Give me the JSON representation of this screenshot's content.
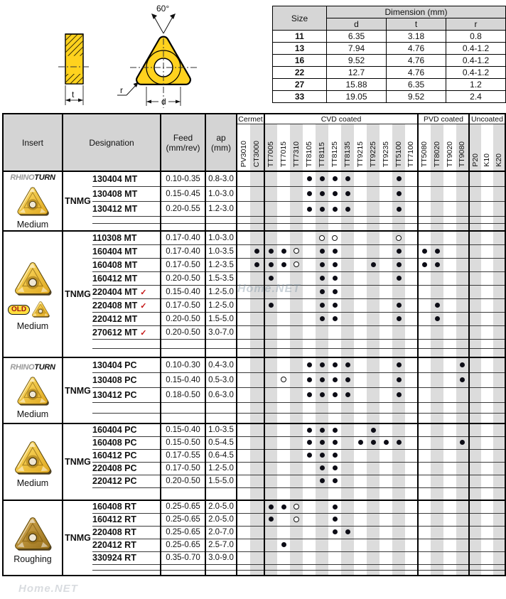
{
  "diagram": {
    "angle": "60°",
    "t": "t",
    "d": "d",
    "r": "r"
  },
  "size_table": {
    "size_header": "Size",
    "dimension_header": "Dimension (mm)",
    "columns": [
      "d",
      "t",
      "r"
    ],
    "rows": [
      [
        "11",
        "6.35",
        "3.18",
        "0.8"
      ],
      [
        "13",
        "7.94",
        "4.76",
        "0.4-1.2"
      ],
      [
        "16",
        "9.52",
        "4.76",
        "0.4-1.2"
      ],
      [
        "22",
        "12.7",
        "4.76",
        "0.4-1.2"
      ],
      [
        "27",
        "15.88",
        "6.35",
        "1.2"
      ],
      [
        "33",
        "19.05",
        "9.52",
        "2.4"
      ]
    ]
  },
  "main_table": {
    "headers": {
      "insert": "Insert",
      "designation": "Designation",
      "feed_line1": "Feed",
      "feed_line2": "(mm/rev)",
      "ap_line1": "ap",
      "ap_line2": "(mm)"
    },
    "groups": [
      {
        "label": "Cermet",
        "span": 2
      },
      {
        "label": "CVD coated",
        "span": 12
      },
      {
        "label": "PVD coated",
        "span": 4
      },
      {
        "label": "Uncoated",
        "span": 3
      }
    ],
    "grades": [
      "PV3010",
      "CT3000",
      "TT7005",
      "TT7015",
      "TT7310",
      "TT8105",
      "TT8115",
      "TT8125",
      "TT8135",
      "TT9215",
      "TT9225",
      "TT9235",
      "TT5100",
      "TT7100",
      "TT5080",
      "TT8020",
      "TT9020",
      "TT9080",
      "P20",
      "K10",
      "K20"
    ],
    "gray_columns": [
      "CT3000",
      "TT7005",
      "TT7310",
      "TT8115",
      "TT8135",
      "TT9225",
      "TT5100",
      "TT8020",
      "TT9080",
      "P20",
      "K20"
    ],
    "blocks": [
      {
        "brand": [
          "RHINO",
          "TURN"
        ],
        "badge": null,
        "label": "Medium",
        "style": "gold",
        "prefix": "TNMG",
        "empty_rows": 2,
        "rows": [
          {
            "designation": "130404 MT",
            "check": false,
            "feed": "0.10-0.35",
            "ap": "0.8-3.0",
            "filled": [
              "TT8105",
              "TT8115",
              "TT8125",
              "TT8135",
              "TT5100"
            ],
            "hollow": []
          },
          {
            "designation": "130408 MT",
            "check": false,
            "feed": "0.15-0.45",
            "ap": "1.0-3.0",
            "filled": [
              "TT8105",
              "TT8115",
              "TT8125",
              "TT8135",
              "TT5100"
            ],
            "hollow": []
          },
          {
            "designation": "130412 MT",
            "check": false,
            "feed": "0.20-0.55",
            "ap": "1.2-3.0",
            "filled": [
              "TT8105",
              "TT8115",
              "TT8125",
              "TT8135",
              "TT5100"
            ],
            "hollow": []
          }
        ]
      },
      {
        "brand": null,
        "badge": "OLD",
        "label": "Medium",
        "style": "gold",
        "prefix": "TNMG",
        "empty_rows": 2,
        "rows": [
          {
            "designation": "110308 MT",
            "check": false,
            "feed": "0.17-0.40",
            "ap": "1.0-3.0",
            "filled": [],
            "hollow": [
              "TT8115",
              "TT8125",
              "TT5100"
            ]
          },
          {
            "designation": "160404 MT",
            "check": false,
            "feed": "0.17-0.40",
            "ap": "1.0-3.5",
            "filled": [
              "CT3000",
              "TT7005",
              "TT7015",
              "TT8115",
              "TT8125",
              "TT5100",
              "TT5080",
              "TT8020"
            ],
            "hollow": [
              "TT7310"
            ]
          },
          {
            "designation": "160408 MT",
            "check": false,
            "feed": "0.17-0.50",
            "ap": "1.2-3.5",
            "filled": [
              "CT3000",
              "TT7005",
              "TT7015",
              "TT8115",
              "TT8125",
              "TT9225",
              "TT5100",
              "TT5080",
              "TT8020"
            ],
            "hollow": [
              "TT7310"
            ]
          },
          {
            "designation": "160412 MT",
            "check": false,
            "feed": "0.20-0.50",
            "ap": "1.5-3.5",
            "filled": [
              "TT7005",
              "TT8115",
              "TT8125",
              "TT5100"
            ],
            "hollow": []
          },
          {
            "designation": "220404 MT",
            "check": true,
            "feed": "0.15-0.40",
            "ap": "1.2-5.0",
            "filled": [
              "TT8115",
              "TT8125"
            ],
            "hollow": []
          },
          {
            "designation": "220408 MT",
            "check": true,
            "feed": "0.17-0.50",
            "ap": "1.2-5.0",
            "filled": [
              "TT7005",
              "TT8115",
              "TT8125",
              "TT5100",
              "TT8020"
            ],
            "hollow": []
          },
          {
            "designation": "220412 MT",
            "check": false,
            "feed": "0.20-0.50",
            "ap": "1.5-5.0",
            "filled": [
              "TT8115",
              "TT8125",
              "TT5100",
              "TT8020"
            ],
            "hollow": []
          },
          {
            "designation": "270612 MT",
            "check": true,
            "feed": "0.20-0.50",
            "ap": "3.0-7.0",
            "filled": [],
            "hollow": []
          }
        ]
      },
      {
        "brand": [
          "RHINO",
          "TURN"
        ],
        "badge": null,
        "label": "Medium",
        "style": "gold",
        "prefix": "TNMG",
        "empty_rows": 2,
        "rows": [
          {
            "designation": "130404 PC",
            "check": false,
            "feed": "0.10-0.30",
            "ap": "0.4-3.0",
            "filled": [
              "TT8105",
              "TT8115",
              "TT8125",
              "TT8135",
              "TT5100",
              "TT9080"
            ],
            "hollow": []
          },
          {
            "designation": "130408 PC",
            "check": false,
            "feed": "0.15-0.40",
            "ap": "0.5-3.0",
            "filled": [
              "TT8105",
              "TT8115",
              "TT8125",
              "TT8135",
              "TT5100",
              "TT9080"
            ],
            "hollow": [
              "TT7015"
            ]
          },
          {
            "designation": "130412 PC",
            "check": false,
            "feed": "0.18-0.50",
            "ap": "0.6-3.0",
            "filled": [
              "TT8105",
              "TT8115",
              "TT8125",
              "TT8135",
              "TT5100"
            ],
            "hollow": []
          }
        ]
      },
      {
        "brand": null,
        "badge": null,
        "label": "Medium",
        "style": "gold",
        "prefix": "TNMG",
        "empty_rows": 1,
        "rows": [
          {
            "designation": "160404 PC",
            "check": false,
            "feed": "0.15-0.40",
            "ap": "1.0-3.5",
            "filled": [
              "TT8105",
              "TT8115",
              "TT8125",
              "TT9225"
            ],
            "hollow": []
          },
          {
            "designation": "160408 PC",
            "check": false,
            "feed": "0.15-0.50",
            "ap": "0.5-4.5",
            "filled": [
              "TT8105",
              "TT8115",
              "TT8125",
              "TT9215",
              "TT9225",
              "TT9235",
              "TT5100",
              "TT9080"
            ],
            "hollow": []
          },
          {
            "designation": "160412 PC",
            "check": false,
            "feed": "0.17-0.55",
            "ap": "0.6-4.5",
            "filled": [
              "TT8105",
              "TT8115",
              "TT8125"
            ],
            "hollow": []
          },
          {
            "designation": "220408 PC",
            "check": false,
            "feed": "0.17-0.50",
            "ap": "1.2-5.0",
            "filled": [
              "TT8115",
              "TT8125"
            ],
            "hollow": []
          },
          {
            "designation": "220412 PC",
            "check": false,
            "feed": "0.20-0.50",
            "ap": "1.5-5.0",
            "filled": [
              "TT8115",
              "TT8125"
            ],
            "hollow": []
          }
        ]
      },
      {
        "brand": null,
        "badge": null,
        "label": "Roughing",
        "style": "brown",
        "prefix": "TNMG",
        "empty_rows": 2,
        "rows": [
          {
            "designation": "160408 RT",
            "check": false,
            "feed": "0.25-0.65",
            "ap": "2.0-5.0",
            "filled": [
              "TT7005",
              "TT7015",
              "TT8125"
            ],
            "hollow": [
              "TT7310"
            ]
          },
          {
            "designation": "160412 RT",
            "check": false,
            "feed": "0.25-0.65",
            "ap": "2.0-5.0",
            "filled": [
              "TT7005",
              "TT8125"
            ],
            "hollow": [
              "TT7310"
            ]
          },
          {
            "designation": "220408 RT",
            "check": false,
            "feed": "0.25-0.65",
            "ap": "2.0-7.0",
            "filled": [
              "TT8125",
              "TT8135"
            ],
            "hollow": []
          },
          {
            "designation": "220412 RT",
            "check": false,
            "feed": "0.25-0.65",
            "ap": "2.5-7.0",
            "filled": [
              "TT7015"
            ],
            "hollow": []
          },
          {
            "designation": "330924 RT",
            "check": false,
            "feed": "0.35-0.70",
            "ap": "3.0-9.0",
            "filled": [],
            "hollow": []
          }
        ]
      }
    ]
  },
  "watermarks": [
    {
      "text": "Home.NET"
    },
    {
      "text": "Home.NET"
    }
  ]
}
